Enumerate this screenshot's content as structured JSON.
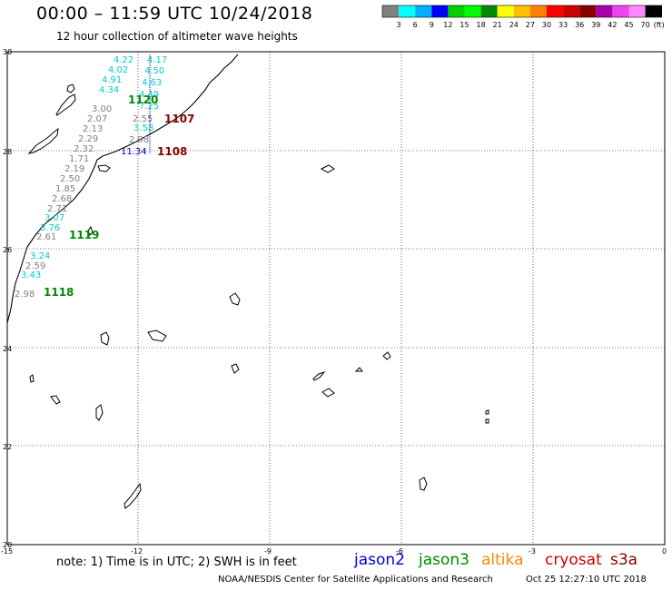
{
  "header": {
    "title": "00:00 – 11:59 UTC 10/24/2018",
    "subtitle": "12 hour collection of altimeter wave heights"
  },
  "legend": {
    "colors": [
      "#808080",
      "#00ffff",
      "#00b0ff",
      "#0000ff",
      "#00d000",
      "#00ff00",
      "#008800",
      "#ffff00",
      "#ffc000",
      "#ff8000",
      "#ff0000",
      "#cc0000",
      "#880000",
      "#aa00aa",
      "#ee44ee",
      "#ff88ff",
      "#000000"
    ],
    "labels": [
      "3",
      "6",
      "9",
      "12",
      "15",
      "18",
      "21",
      "24",
      "27",
      "30",
      "33",
      "36",
      "39",
      "42",
      "45",
      "70",
      "(ft)"
    ]
  },
  "axes": {
    "lat_ticks": [
      "30",
      "28",
      "26",
      "24",
      "22",
      "20"
    ],
    "lon_ticks": [
      "-15",
      "-12",
      "-9",
      "-6",
      "-3",
      "0"
    ]
  },
  "tracks": [
    {
      "id": "1120",
      "color": "#008800"
    },
    {
      "id": "1107",
      "color": "#880000"
    },
    {
      "id": "1108",
      "color": "#880000"
    },
    {
      "id": "1119",
      "color": "#008800"
    },
    {
      "id": "1118",
      "color": "#008800"
    }
  ],
  "wave_values": [
    {
      "text": "4.22",
      "color": "#00cccc"
    },
    {
      "text": "4.17",
      "color": "#00cccc"
    },
    {
      "text": "4.02",
      "color": "#00cccc"
    },
    {
      "text": "4.50",
      "color": "#00cccc"
    },
    {
      "text": "4.91",
      "color": "#00cccc"
    },
    {
      "text": "4.63",
      "color": "#00cccc"
    },
    {
      "text": "4.34",
      "color": "#00cccc"
    },
    {
      "text": "4.49",
      "color": "#00cccc"
    },
    {
      "text": "7.25",
      "color": "#00cccc"
    },
    {
      "text": "3.00",
      "color": "#808080"
    },
    {
      "text": "2.07",
      "color": "#808080"
    },
    {
      "text": "2.55",
      "color": "#808080"
    },
    {
      "text": "3.58",
      "color": "#00cccc"
    },
    {
      "text": "2.13",
      "color": "#808080"
    },
    {
      "text": "2.29",
      "color": "#808080"
    },
    {
      "text": "2.98",
      "color": "#808080"
    },
    {
      "text": "2.32",
      "color": "#808080"
    },
    {
      "text": "11.34",
      "color": "#0000cc"
    },
    {
      "text": "1.71",
      "color": "#808080"
    },
    {
      "text": "2.19",
      "color": "#808080"
    },
    {
      "text": "2.50",
      "color": "#808080"
    },
    {
      "text": "1.85",
      "color": "#808080"
    },
    {
      "text": "2.68",
      "color": "#808080"
    },
    {
      "text": "2.71",
      "color": "#808080"
    },
    {
      "text": "3.07",
      "color": "#00cccc"
    },
    {
      "text": "3.76",
      "color": "#00cccc"
    },
    {
      "text": "2.61",
      "color": "#808080"
    },
    {
      "text": "3.24",
      "color": "#00cccc"
    },
    {
      "text": "2.59",
      "color": "#808080"
    },
    {
      "text": "3.43",
      "color": "#00cccc"
    },
    {
      "text": "2.98",
      "color": "#808080"
    }
  ],
  "footer": {
    "note": "note: 1) Time is in UTC; 2) SWH is in feet",
    "satellites": [
      {
        "name": "jason2",
        "color": "#0000cc"
      },
      {
        "name": "jason3",
        "color": "#008800"
      },
      {
        "name": "altika",
        "color": "#ff8800"
      },
      {
        "name": "cryosat",
        "color": "#cc0000"
      },
      {
        "name": "s3a",
        "color": "#880000"
      }
    ],
    "credit": "NOAA/NESDIS Center for Satellite Applications and Research",
    "timestamp": "Oct 25 12:27:10 UTC 2018"
  }
}
